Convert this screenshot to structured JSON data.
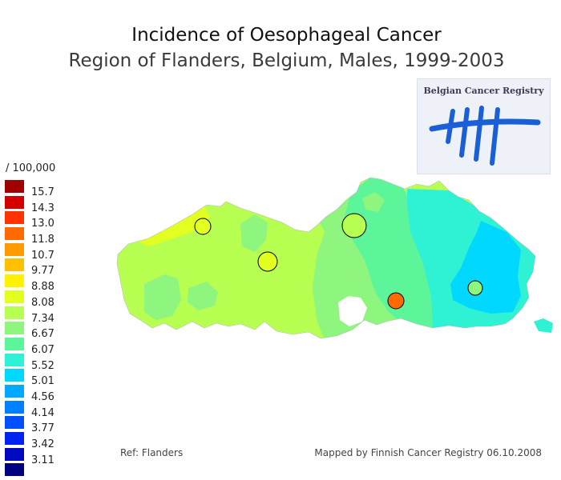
{
  "header": {
    "title": "Incidence of Oesophageal Cancer",
    "subtitle": "Region of Flanders, Belgium, Males, 1999-2003"
  },
  "logo": {
    "text": "Belgian Cancer Registry",
    "icon": "tally-marks-logo"
  },
  "legend": {
    "unit": "/ 100,000",
    "items": [
      {
        "label": "15.7",
        "color": "#a00000"
      },
      {
        "label": "14.3",
        "color": "#d40000"
      },
      {
        "label": "13.0",
        "color": "#ff3300"
      },
      {
        "label": "11.8",
        "color": "#ff6a00"
      },
      {
        "label": "10.7",
        "color": "#ff9a00"
      },
      {
        "label": "9.77",
        "color": "#ffc000"
      },
      {
        "label": "8.88",
        "color": "#fff200"
      },
      {
        "label": "8.08",
        "color": "#e3ff1f"
      },
      {
        "label": "7.34",
        "color": "#b7ff50"
      },
      {
        "label": "6.67",
        "color": "#8ef57e"
      },
      {
        "label": "6.07",
        "color": "#5cf59a"
      },
      {
        "label": "5.52",
        "color": "#2ef2d3"
      },
      {
        "label": "5.01",
        "color": "#00d8ff"
      },
      {
        "label": "4.56",
        "color": "#00a8ff"
      },
      {
        "label": "4.14",
        "color": "#0080ff"
      },
      {
        "label": "3.77",
        "color": "#0050ff"
      },
      {
        "label": "3.42",
        "color": "#0024f0"
      },
      {
        "label": "3.11",
        "color": "#0008c0"
      },
      {
        "label": "",
        "color": "#000080"
      }
    ]
  },
  "map": {
    "regions": [
      {
        "name": "west-flanders-north",
        "color": "#e3ff1f"
      },
      {
        "name": "west-flanders",
        "color": "#b7ff50"
      },
      {
        "name": "central-flanders",
        "color": "#8ef57e"
      },
      {
        "name": "antwerp",
        "color": "#5cf59a"
      },
      {
        "name": "limburg-west",
        "color": "#2ef2d3"
      },
      {
        "name": "limburg-east",
        "color": "#00d8ff"
      }
    ],
    "markers": [
      {
        "name": "marker-bruges",
        "color": "#e3ff1f"
      },
      {
        "name": "marker-ghent",
        "color": "#e3ff1f"
      },
      {
        "name": "marker-antwerp",
        "color": "#b7ff50"
      },
      {
        "name": "marker-leuven",
        "color": "#ff6a00"
      },
      {
        "name": "marker-hasselt",
        "color": "#8ef57e"
      }
    ]
  },
  "footer": {
    "ref": "Ref: Flanders",
    "mapped_by": "Mapped by Finnish Cancer Registry 06.10.2008"
  }
}
